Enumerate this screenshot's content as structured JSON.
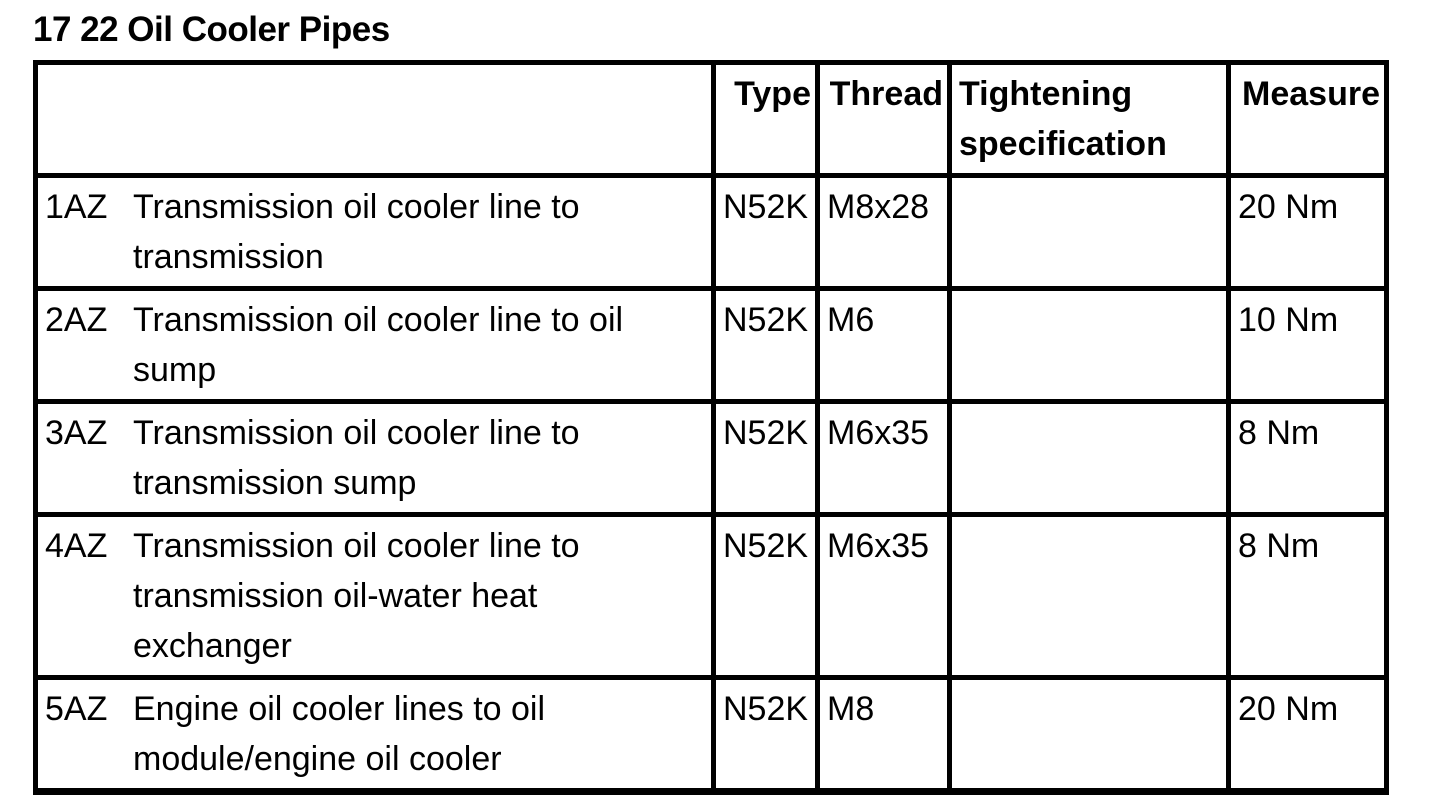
{
  "page": {
    "title": "17 22 Oil Cooler Pipes"
  },
  "colors": {
    "text": "#000000",
    "background": "#ffffff",
    "border": "#000000"
  },
  "table": {
    "headers": {
      "label": "",
      "type": "Type",
      "thread": "Thread",
      "tightening": "Tightening specification",
      "measure": "Measure"
    },
    "rows": [
      {
        "id": "1AZ",
        "description": "Transmission oil cooler line to transmission",
        "type": "N52K",
        "thread": "M8x28",
        "tightening": "",
        "measure": "20 Nm"
      },
      {
        "id": "2AZ",
        "description": "Transmission oil cooler line to oil sump",
        "type": "N52K",
        "thread": "M6",
        "tightening": "",
        "measure": "10 Nm"
      },
      {
        "id": "3AZ",
        "description": "Transmission oil cooler line to transmission sump",
        "type": "N52K",
        "thread": "M6x35",
        "tightening": "",
        "measure": "8 Nm"
      },
      {
        "id": "4AZ",
        "description": "Transmission oil cooler line to transmission oil-water heat exchanger",
        "type": "N52K",
        "thread": "M6x35",
        "tightening": "",
        "measure": "8 Nm"
      },
      {
        "id": "5AZ",
        "description": "Engine oil cooler lines to oil module/engine oil cooler",
        "type": "N52K",
        "thread": "M8",
        "tightening": "",
        "measure": "20 Nm"
      }
    ]
  }
}
